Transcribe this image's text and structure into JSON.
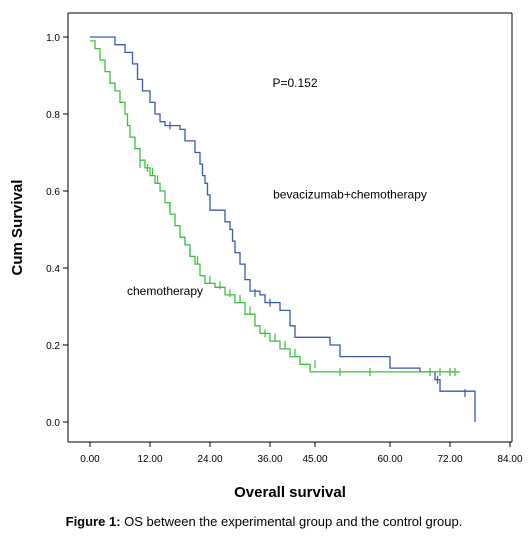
{
  "caption": {
    "lead": "Figure 1:",
    "text": " OS between the experimental group and the control group."
  },
  "chart_data": {
    "type": "line",
    "step": true,
    "title": "",
    "xlabel": "Overall survival",
    "ylabel": "Cum Survival",
    "xlim": [
      0,
      84
    ],
    "ylim": [
      0,
      1.05
    ],
    "xticks": [
      0,
      12,
      24,
      36,
      45,
      60,
      72,
      84
    ],
    "xtick_labels": [
      "0.00",
      "12.00",
      "24.00",
      "36.00",
      "45.00",
      "60.00",
      "72.00",
      "84.00"
    ],
    "yticks": [
      0,
      0.2,
      0.4,
      0.6,
      0.8,
      1.0
    ],
    "ytick_labels": [
      "0.0",
      "0.2",
      "0.4",
      "0.6",
      "0.8",
      "1.0"
    ],
    "grid": false,
    "annotations": [
      {
        "text": "P=0.152",
        "x": 41,
        "y": 0.87
      },
      {
        "text": "bevacizumab+chemotherapy",
        "x": 52,
        "y": 0.58
      },
      {
        "text": "chemotherapy",
        "x": 15,
        "y": 0.33
      }
    ],
    "series": [
      {
        "color": "#3b5aa8",
        "label_ref": "bevacizumab+chemotherapy",
        "points": [
          [
            0,
            1.0
          ],
          [
            5,
            1.0
          ],
          [
            5,
            0.98
          ],
          [
            7,
            0.98
          ],
          [
            7,
            0.96
          ],
          [
            8.5,
            0.96
          ],
          [
            8.5,
            0.93
          ],
          [
            9.5,
            0.93
          ],
          [
            9.5,
            0.89
          ],
          [
            10.5,
            0.89
          ],
          [
            10.5,
            0.86
          ],
          [
            12,
            0.86
          ],
          [
            12,
            0.83
          ],
          [
            13,
            0.83
          ],
          [
            13,
            0.8
          ],
          [
            14,
            0.8
          ],
          [
            14,
            0.78
          ],
          [
            15,
            0.78
          ],
          [
            15,
            0.77
          ],
          [
            18,
            0.77
          ],
          [
            18,
            0.76
          ],
          [
            19,
            0.76
          ],
          [
            19,
            0.73
          ],
          [
            21,
            0.73
          ],
          [
            21,
            0.7
          ],
          [
            22,
            0.7
          ],
          [
            22,
            0.67
          ],
          [
            22.5,
            0.67
          ],
          [
            22.5,
            0.64
          ],
          [
            23,
            0.64
          ],
          [
            23,
            0.62
          ],
          [
            23.5,
            0.62
          ],
          [
            23.5,
            0.59
          ],
          [
            24,
            0.59
          ],
          [
            24,
            0.55
          ],
          [
            27,
            0.55
          ],
          [
            27,
            0.52
          ],
          [
            28,
            0.52
          ],
          [
            28,
            0.5
          ],
          [
            28.5,
            0.5
          ],
          [
            28.5,
            0.47
          ],
          [
            29,
            0.47
          ],
          [
            29,
            0.44
          ],
          [
            30,
            0.44
          ],
          [
            30,
            0.41
          ],
          [
            31,
            0.41
          ],
          [
            31,
            0.37
          ],
          [
            32,
            0.37
          ],
          [
            32,
            0.34
          ],
          [
            34,
            0.34
          ],
          [
            34,
            0.33
          ],
          [
            35,
            0.33
          ],
          [
            35,
            0.31
          ],
          [
            38,
            0.31
          ],
          [
            38,
            0.29
          ],
          [
            40,
            0.29
          ],
          [
            40,
            0.25
          ],
          [
            41,
            0.25
          ],
          [
            41,
            0.22
          ],
          [
            48,
            0.22
          ],
          [
            48,
            0.2
          ],
          [
            50,
            0.2
          ],
          [
            50,
            0.17
          ],
          [
            60,
            0.17
          ],
          [
            60,
            0.14
          ],
          [
            66,
            0.14
          ],
          [
            66,
            0.13
          ],
          [
            69,
            0.13
          ],
          [
            69,
            0.11
          ],
          [
            70,
            0.11
          ],
          [
            70,
            0.08
          ],
          [
            77,
            0.08
          ],
          [
            77,
            0.0
          ]
        ],
        "censored": [
          [
            16,
            0.77
          ],
          [
            33,
            0.335
          ],
          [
            36,
            0.31
          ],
          [
            69.5,
            0.11
          ],
          [
            75,
            0.075
          ]
        ]
      },
      {
        "color": "#3dbf3d",
        "label_ref": "chemotherapy",
        "points": [
          [
            0,
            0.99
          ],
          [
            1,
            0.99
          ],
          [
            1,
            0.97
          ],
          [
            2,
            0.97
          ],
          [
            2,
            0.94
          ],
          [
            3,
            0.94
          ],
          [
            3,
            0.91
          ],
          [
            4,
            0.91
          ],
          [
            4,
            0.88
          ],
          [
            5,
            0.88
          ],
          [
            5,
            0.86
          ],
          [
            6,
            0.86
          ],
          [
            6,
            0.83
          ],
          [
            7,
            0.83
          ],
          [
            7,
            0.8
          ],
          [
            7.5,
            0.8
          ],
          [
            7.5,
            0.77
          ],
          [
            8,
            0.77
          ],
          [
            8,
            0.74
          ],
          [
            9,
            0.74
          ],
          [
            9,
            0.71
          ],
          [
            10,
            0.71
          ],
          [
            10,
            0.68
          ],
          [
            11,
            0.68
          ],
          [
            11,
            0.66
          ],
          [
            12,
            0.66
          ],
          [
            12,
            0.64
          ],
          [
            13,
            0.64
          ],
          [
            13,
            0.62
          ],
          [
            14,
            0.62
          ],
          [
            14,
            0.6
          ],
          [
            15,
            0.6
          ],
          [
            15,
            0.57
          ],
          [
            16,
            0.57
          ],
          [
            16,
            0.54
          ],
          [
            17,
            0.54
          ],
          [
            17,
            0.51
          ],
          [
            18,
            0.51
          ],
          [
            18,
            0.48
          ],
          [
            19,
            0.48
          ],
          [
            19,
            0.46
          ],
          [
            20,
            0.46
          ],
          [
            20,
            0.43
          ],
          [
            21,
            0.43
          ],
          [
            21,
            0.41
          ],
          [
            22,
            0.41
          ],
          [
            22,
            0.38
          ],
          [
            23,
            0.38
          ],
          [
            23,
            0.36
          ],
          [
            25,
            0.36
          ],
          [
            25,
            0.35
          ],
          [
            27,
            0.35
          ],
          [
            27,
            0.33
          ],
          [
            29,
            0.33
          ],
          [
            29,
            0.31
          ],
          [
            31,
            0.31
          ],
          [
            31,
            0.28
          ],
          [
            33,
            0.28
          ],
          [
            33,
            0.25
          ],
          [
            34,
            0.25
          ],
          [
            34,
            0.23
          ],
          [
            36,
            0.23
          ],
          [
            36,
            0.21
          ],
          [
            38,
            0.21
          ],
          [
            38,
            0.19
          ],
          [
            40,
            0.19
          ],
          [
            40,
            0.17
          ],
          [
            42,
            0.17
          ],
          [
            42,
            0.15
          ],
          [
            44,
            0.15
          ],
          [
            44,
            0.13
          ],
          [
            74,
            0.13
          ]
        ],
        "censored": [
          [
            10,
            0.67
          ],
          [
            11.5,
            0.66
          ],
          [
            12.5,
            0.65
          ],
          [
            13.5,
            0.63
          ],
          [
            16,
            0.56
          ],
          [
            19,
            0.47
          ],
          [
            20,
            0.44
          ],
          [
            21.5,
            0.42
          ],
          [
            24,
            0.37
          ],
          [
            26,
            0.355
          ],
          [
            28,
            0.335
          ],
          [
            30,
            0.32
          ],
          [
            32,
            0.29
          ],
          [
            35,
            0.23
          ],
          [
            37,
            0.22
          ],
          [
            39,
            0.2
          ],
          [
            41,
            0.18
          ],
          [
            45,
            0.15
          ],
          [
            50,
            0.13
          ],
          [
            56,
            0.13
          ],
          [
            68,
            0.13
          ],
          [
            70,
            0.13
          ],
          [
            72,
            0.13
          ],
          [
            73,
            0.13
          ]
        ]
      }
    ]
  }
}
